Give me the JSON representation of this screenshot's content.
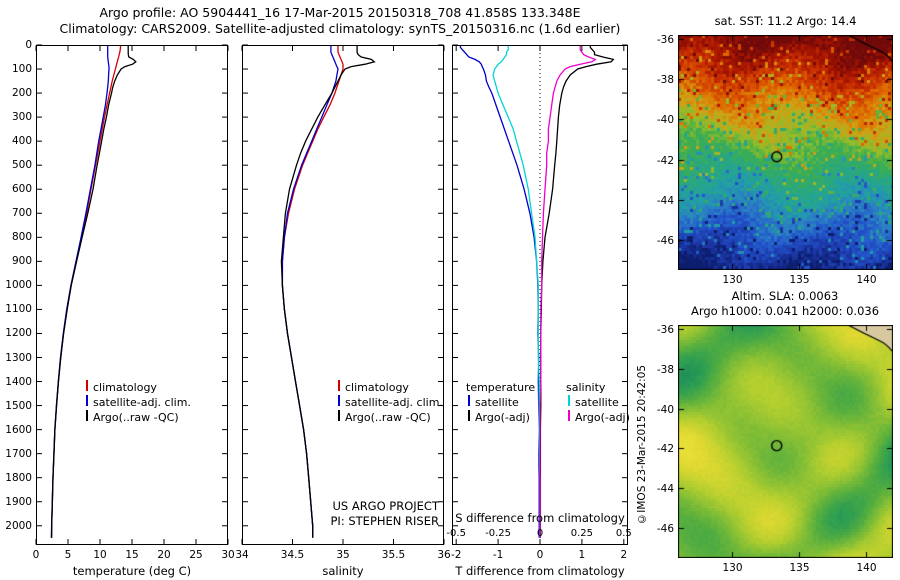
{
  "header": {
    "line1": "Argo profile: AO 5904441_16 17-Mar-2015 20150318_708 41.858S 133.348E",
    "line2": "Climatology: CARS2009. Satellite-adjusted climatology: synTS_20150316.nc (1.6d earlier)"
  },
  "credit": "©IMOS 23-Mar-2015 20:42:05",
  "notes": {
    "project_line1": "US ARGO PROJECT",
    "project_line2": "PI: STEPHEN RISER"
  },
  "chart_data": [
    {
      "type": "line",
      "name": "temperature-profile",
      "xlabel": "temperature (deg C)",
      "xlim": [
        0,
        30
      ],
      "xticks": [
        0,
        5,
        10,
        15,
        20,
        25,
        30
      ],
      "ylim": [
        0,
        2080
      ],
      "yticks": [
        0,
        100,
        200,
        300,
        400,
        500,
        600,
        700,
        800,
        900,
        1000,
        1100,
        1200,
        1300,
        1400,
        1500,
        1600,
        1700,
        1800,
        1900,
        2000
      ],
      "depths": [
        0,
        10,
        20,
        30,
        40,
        50,
        60,
        70,
        80,
        90,
        100,
        125,
        150,
        175,
        200,
        250,
        300,
        350,
        400,
        450,
        500,
        600,
        700,
        800,
        900,
        1000,
        1100,
        1200,
        1300,
        1400,
        1500,
        1600,
        1700,
        1800,
        1900,
        2000,
        2050
      ],
      "series": [
        {
          "name": "climatology",
          "color": "#d40000",
          "values": [
            13.2,
            13.2,
            13.15,
            13.1,
            13.0,
            12.9,
            12.8,
            12.7,
            12.6,
            12.5,
            12.4,
            12.15,
            11.9,
            11.7,
            11.5,
            11.1,
            10.7,
            10.35,
            10.0,
            9.65,
            9.3,
            8.6,
            7.9,
            7.1,
            6.3,
            5.5,
            4.85,
            4.3,
            3.85,
            3.5,
            3.2,
            2.95,
            2.8,
            2.65,
            2.55,
            2.45,
            2.42
          ]
        },
        {
          "name": "satellite-adj. clim.",
          "color": "#0000cc",
          "values": [
            11.2,
            11.2,
            11.2,
            11.2,
            11.2,
            11.2,
            11.25,
            11.3,
            11.35,
            11.4,
            11.4,
            11.35,
            11.3,
            11.2,
            11.1,
            10.85,
            10.5,
            10.15,
            9.8,
            9.5,
            9.2,
            8.5,
            7.8,
            7.05,
            6.25,
            5.45,
            4.8,
            4.27,
            3.83,
            3.48,
            3.18,
            2.94,
            2.79,
            2.64,
            2.54,
            2.44,
            2.41
          ]
        },
        {
          "name": "Argo(..raw -QC)",
          "color": "#000000",
          "values": [
            14.4,
            14.4,
            14.4,
            14.4,
            14.42,
            14.5,
            15.2,
            15.6,
            15.1,
            13.9,
            13.3,
            12.7,
            12.3,
            12.0,
            11.8,
            11.35,
            11.0,
            10.6,
            10.25,
            9.9,
            9.55,
            8.9,
            8.1,
            7.2,
            6.35,
            5.5,
            4.87,
            4.32,
            3.87,
            3.52,
            3.22,
            2.96,
            2.81,
            2.66,
            2.56,
            2.46,
            2.43
          ]
        }
      ],
      "legend": [
        {
          "label": "climatology",
          "color": "#d40000"
        },
        {
          "label": "satellite-adj. clim.",
          "color": "#0000cc"
        },
        {
          "label": "Argo(..raw -QC)",
          "color": "#000000"
        }
      ]
    },
    {
      "type": "line",
      "name": "salinity-profile",
      "xlabel": "salinity",
      "xlim": [
        34,
        36
      ],
      "xticks": [
        34,
        34.5,
        35,
        35.5,
        36
      ],
      "ylim": [
        0,
        2080
      ],
      "yticks": [
        0,
        100,
        200,
        300,
        400,
        500,
        600,
        700,
        800,
        900,
        1000,
        1100,
        1200,
        1300,
        1400,
        1500,
        1600,
        1700,
        1800,
        1900,
        2000
      ],
      "depths": [
        0,
        10,
        20,
        30,
        40,
        50,
        60,
        70,
        80,
        90,
        100,
        125,
        150,
        175,
        200,
        250,
        300,
        350,
        400,
        450,
        500,
        600,
        700,
        800,
        900,
        1000,
        1100,
        1200,
        1300,
        1400,
        1500,
        1600,
        1700,
        1800,
        1900,
        2000,
        2050
      ],
      "series": [
        {
          "name": "climatology",
          "color": "#d40000",
          "values": [
            34.95,
            34.95,
            34.95,
            34.95,
            34.96,
            34.97,
            34.98,
            34.99,
            35.0,
            35.0,
            35.0,
            34.98,
            34.96,
            34.94,
            34.92,
            34.87,
            34.81,
            34.75,
            34.7,
            34.65,
            34.6,
            34.52,
            34.46,
            34.42,
            34.4,
            34.4,
            34.42,
            34.45,
            34.49,
            34.53,
            34.57,
            34.61,
            34.64,
            34.66,
            34.68,
            34.7,
            34.7
          ]
        },
        {
          "name": "satellite-adj. clim.",
          "color": "#0000cc",
          "values": [
            34.88,
            34.88,
            34.88,
            34.88,
            34.89,
            34.9,
            34.91,
            34.92,
            34.93,
            34.94,
            34.95,
            34.94,
            34.93,
            34.91,
            34.89,
            34.84,
            34.79,
            34.74,
            34.69,
            34.64,
            34.59,
            34.51,
            34.45,
            34.42,
            34.4,
            34.4,
            34.42,
            34.45,
            34.49,
            34.53,
            34.57,
            34.61,
            34.64,
            34.66,
            34.68,
            34.7,
            34.7
          ]
        },
        {
          "name": "Argo(..raw -QC)",
          "color": "#000000",
          "values": [
            35.14,
            35.14,
            35.14,
            35.14,
            35.15,
            35.18,
            35.28,
            35.31,
            35.22,
            35.08,
            35.02,
            34.98,
            34.95,
            34.92,
            34.89,
            34.82,
            34.75,
            34.69,
            34.63,
            34.58,
            34.54,
            34.47,
            34.43,
            34.41,
            34.39,
            34.4,
            34.42,
            34.45,
            34.49,
            34.53,
            34.57,
            34.61,
            34.64,
            34.66,
            34.68,
            34.7,
            34.7
          ]
        }
      ],
      "legend": [
        {
          "label": "climatology",
          "color": "#d40000"
        },
        {
          "label": "satellite-adj. clim.",
          "color": "#0000cc"
        },
        {
          "label": "Argo(..raw -QC)",
          "color": "#000000"
        }
      ]
    },
    {
      "type": "line",
      "name": "difference-profile",
      "xlabel": "T difference from climatology",
      "xlim": [
        -2.1,
        2.1
      ],
      "xticks": [
        -2,
        -1,
        0,
        1,
        2
      ],
      "zero_line": true,
      "s_axis": {
        "label": "S difference from climatology",
        "ticks": [
          -0.5,
          -0.25,
          0,
          0.25,
          0.5
        ],
        "scale": 4
      },
      "ylim": [
        0,
        2080
      ],
      "yticks": [
        0,
        100,
        200,
        300,
        400,
        500,
        600,
        700,
        800,
        900,
        1000,
        1100,
        1200,
        1300,
        1400,
        1500,
        1600,
        1700,
        1800,
        1900,
        2000
      ],
      "depths": [
        0,
        10,
        20,
        30,
        40,
        50,
        60,
        70,
        80,
        90,
        100,
        125,
        150,
        175,
        200,
        250,
        300,
        350,
        400,
        450,
        500,
        600,
        700,
        800,
        900,
        1000,
        1100,
        1200,
        1300,
        1400,
        1500,
        1600,
        1700,
        1800,
        1900,
        2000,
        2050
      ],
      "series": [
        {
          "name": "T satellite",
          "color": "#0000cc",
          "scale": 1,
          "values": [
            -1.9,
            -1.9,
            -1.85,
            -1.8,
            -1.75,
            -1.7,
            -1.55,
            -1.45,
            -1.4,
            -1.38,
            -1.35,
            -1.3,
            -1.28,
            -1.22,
            -1.15,
            -1.05,
            -0.95,
            -0.85,
            -0.75,
            -0.65,
            -0.55,
            -0.38,
            -0.24,
            -0.14,
            -0.08,
            -0.05,
            -0.04,
            -0.05,
            -0.03,
            -0.04,
            -0.03,
            -0.02,
            -0.03,
            -0.02,
            -0.02,
            -0.02,
            -0.02
          ]
        },
        {
          "name": "T Argo(-adj)",
          "color": "#000000",
          "scale": 1,
          "values": [
            1.2,
            1.2,
            1.25,
            1.3,
            1.3,
            1.5,
            1.75,
            1.7,
            1.35,
            1.1,
            0.9,
            0.72,
            0.62,
            0.56,
            0.52,
            0.47,
            0.44,
            0.42,
            0.4,
            0.38,
            0.35,
            0.3,
            0.22,
            0.12,
            0.07,
            0.04,
            0.03,
            0.02,
            0.02,
            0.02,
            0.02,
            0.01,
            0.01,
            0.01,
            0.01,
            0.01,
            0.01
          ]
        },
        {
          "name": "S satellite",
          "color": "#00d5d5",
          "scale": 4,
          "values": [
            -0.19,
            -0.19,
            -0.19,
            -0.2,
            -0.2,
            -0.21,
            -0.22,
            -0.23,
            -0.25,
            -0.26,
            -0.27,
            -0.28,
            -0.27,
            -0.26,
            -0.25,
            -0.22,
            -0.19,
            -0.16,
            -0.14,
            -0.12,
            -0.1,
            -0.07,
            -0.05,
            -0.03,
            -0.02,
            -0.01,
            -0.01,
            -0.01,
            -0.01,
            -0.005,
            -0.005,
            -0.005,
            -0.005,
            0,
            0,
            0,
            0
          ]
        },
        {
          "name": "S Argo(-adj)",
          "color": "#ee00cc",
          "scale": 4,
          "values": [
            0.24,
            0.24,
            0.24,
            0.25,
            0.26,
            0.29,
            0.33,
            0.31,
            0.24,
            0.18,
            0.15,
            0.12,
            0.1,
            0.09,
            0.08,
            0.07,
            0.06,
            0.05,
            0.05,
            0.04,
            0.04,
            0.03,
            0.02,
            0.015,
            0.01,
            0.01,
            0.005,
            0.005,
            0.005,
            0.005,
            0,
            0,
            0,
            0,
            0,
            0,
            0
          ]
        }
      ],
      "legend_groups": [
        {
          "header": "temperature",
          "items": [
            {
              "label": "satellite",
              "color": "#0000cc"
            },
            {
              "label": "Argo(-adj)",
              "color": "#000000"
            }
          ]
        },
        {
          "header": "salinity",
          "items": [
            {
              "label": "satellite",
              "color": "#00d5d5"
            },
            {
              "label": "Argo(-adj)",
              "color": "#ee00cc"
            }
          ]
        }
      ]
    },
    {
      "type": "heatmap",
      "name": "sst-map",
      "title": "sat. SST: 11.2 Argo: 14.4",
      "lon_range": [
        126,
        142
      ],
      "lat_range": [
        -35.8,
        -47.5
      ],
      "xticks": [
        130,
        135,
        140
      ],
      "yticks": [
        -36,
        -38,
        -40,
        -42,
        -44,
        -46
      ],
      "marker": {
        "lon": 133.348,
        "lat": -41.858
      },
      "palette": [
        "#700a0a",
        "#a31200",
        "#cc3300",
        "#e06c00",
        "#d2a014",
        "#93bd2a",
        "#3eae4d",
        "#2aa87c",
        "#21a0a4",
        "#2b80c4",
        "#2255cc",
        "#1c38a8",
        "#0c1d6e"
      ]
    },
    {
      "type": "heatmap",
      "name": "sla-map",
      "title_line1": "Altim. SLA: 0.0063",
      "title_line2": "Argo h1000: 0.041 h2000: 0.036",
      "lon_range": [
        126,
        142
      ],
      "lat_range": [
        -35.8,
        -47.5
      ],
      "xticks": [
        130,
        135,
        140
      ],
      "yticks": [
        -36,
        -38,
        -40,
        -42,
        -44,
        -46
      ],
      "marker": {
        "lon": 133.348,
        "lat": -41.858
      },
      "land_color": "#d8c8a0",
      "palette": [
        "#17865e",
        "#2d9e52",
        "#55ae3f",
        "#86bf35",
        "#b5cf2f",
        "#ddd831",
        "#f0e43c"
      ]
    }
  ]
}
